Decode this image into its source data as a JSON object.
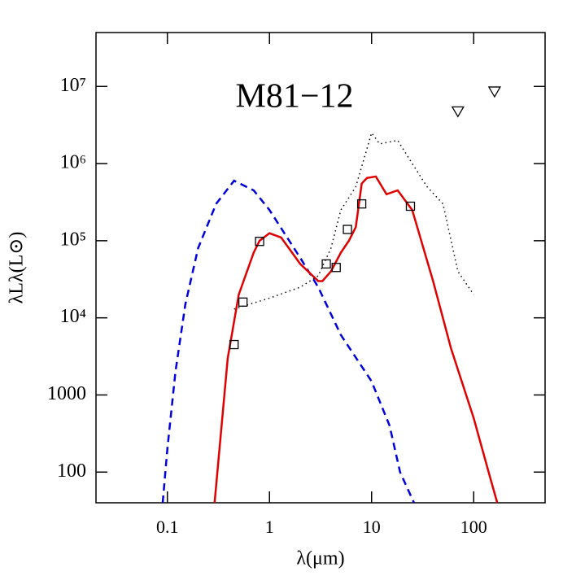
{
  "chart_data": {
    "type": "line",
    "title": "M81−12",
    "x_label": "λ(μm)",
    "y_label": "λLλ(L⊙)",
    "xscale": "log",
    "yscale": "log",
    "xlim": [
      0.02,
      500
    ],
    "ylim": [
      40,
      50000000
    ],
    "xticks": [
      0.1,
      1,
      10,
      100
    ],
    "yticks": [
      100,
      1000,
      {
        "value": 10000,
        "label": "10⁴"
      },
      {
        "value": 100000,
        "label": "10⁵"
      },
      {
        "value": 1000000,
        "label": "10⁶"
      },
      {
        "value": 10000000,
        "label": "10⁷"
      }
    ],
    "series": [
      {
        "style": "dashed",
        "color": "#0000dd",
        "x": [
          0.09,
          0.1,
          0.12,
          0.15,
          0.2,
          0.3,
          0.45,
          0.7,
          1,
          2,
          3,
          5,
          10,
          15,
          19,
          26
        ],
        "values": [
          40,
          200,
          2000,
          15000,
          80000,
          300000,
          600000,
          450000,
          250000,
          60000,
          25000,
          6000,
          1500,
          400,
          100,
          40
        ]
      },
      {
        "style": "solid",
        "color": "#e00000",
        "x": [
          0.29,
          0.39,
          0.5,
          0.7,
          0.8,
          1,
          1.3,
          2,
          3,
          3.3,
          4,
          5,
          6,
          7,
          8,
          9,
          11,
          14,
          18,
          25,
          40,
          60,
          100,
          140,
          170
        ],
        "values": [
          40,
          3000,
          20000,
          70000,
          100000,
          125000,
          110000,
          50000,
          30000,
          30000,
          40000,
          70000,
          100000,
          150000,
          550000,
          650000,
          680000,
          400000,
          450000,
          250000,
          30000,
          4000,
          500,
          100,
          40
        ]
      },
      {
        "style": "dotted",
        "color": "#000000",
        "x": [
          0.45,
          1,
          2,
          3,
          4,
          5,
          7,
          10,
          12,
          18,
          25,
          35,
          50,
          70,
          100
        ],
        "values": [
          13000,
          18000,
          25000,
          35000,
          80000,
          250000,
          500000,
          2500000,
          1800000,
          2000000,
          1000000,
          500000,
          300000,
          40000,
          20000
        ]
      },
      {
        "style": "marker",
        "marker": "square",
        "color": "#000000",
        "x": [
          0.45,
          0.55,
          0.8,
          3.6,
          4.5,
          5.8,
          8,
          24
        ],
        "values": [
          4500,
          16000,
          98000,
          50000,
          45000,
          140000,
          300000,
          280000
        ]
      },
      {
        "style": "marker",
        "marker": "triangle-down",
        "color": "#000000",
        "x": [
          70,
          160
        ],
        "values": [
          4700000,
          8500000
        ]
      }
    ]
  }
}
